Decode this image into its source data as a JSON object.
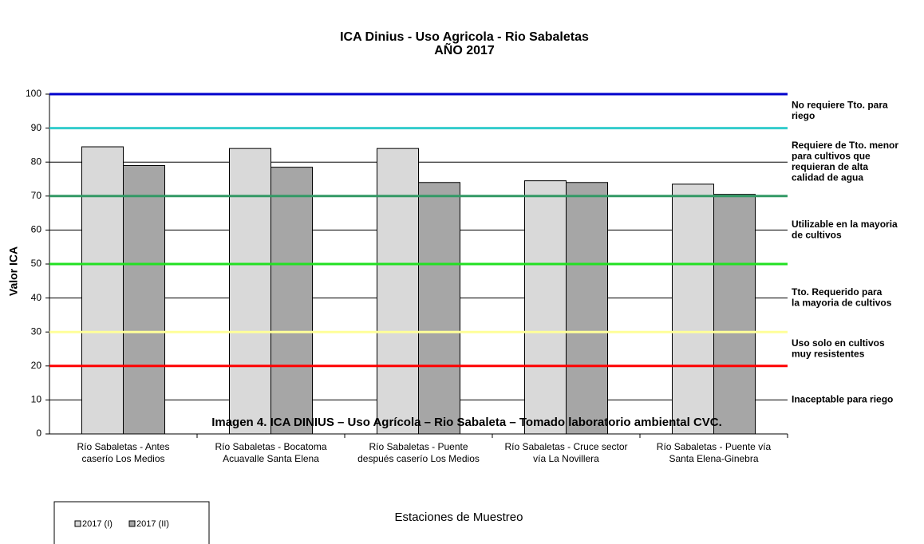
{
  "chart_data": {
    "type": "bar",
    "title": "ICA  Dinius - Uso Agricola - Rio Sabaletas",
    "subtitle": "AÑO 2017",
    "y_label": "Valor  ICA",
    "x_label": "Estaciones de Muestreo",
    "caption": "Imagen 4. ICA DINIUS – Uso Agrícola – Rio Sabaleta – Tomado laboratorio ambiental CVC.",
    "categories": [
      [
        "Río Sabaletas - Antes",
        "caserío  Los Medios"
      ],
      [
        "Río Sabaletas - Bocatoma",
        "Acuavalle Santa Elena"
      ],
      [
        "Río Sabaletas - Puente",
        "después caserío Los Medios"
      ],
      [
        "Río Sabaletas - Cruce sector",
        "vía La Novillera"
      ],
      [
        "Río Sabaletas - Puente vía",
        "Santa Elena-Ginebra"
      ]
    ],
    "series": [
      {
        "name": "2017 (I)",
        "color": "#d9d9d9",
        "values": [
          84.5,
          84,
          84,
          74.5,
          73.5
        ]
      },
      {
        "name": "2017 (II)",
        "color": "#a6a6a6",
        "values": [
          79,
          78.5,
          74,
          74,
          70.5
        ]
      }
    ],
    "ylim": [
      0,
      100
    ],
    "yticks": [
      0,
      10,
      20,
      30,
      40,
      50,
      60,
      70,
      80,
      90,
      100
    ],
    "grid": true,
    "threshold_lines": [
      {
        "value": 100,
        "color": "#0000cc",
        "label": [
          "No requiere Tto. para",
          "riego"
        ]
      },
      {
        "value": 90,
        "color": "#33cccc",
        "label": [
          "Requiere de Tto. menor",
          "para cultivos que",
          "requieran de alta",
          "calidad de agua"
        ]
      },
      {
        "value": 70,
        "color": "#339966",
        "label": [
          "Utilizable en la mayoria",
          "de cultivos"
        ]
      },
      {
        "value": 50,
        "color": "#22e022",
        "label": [
          "Tto. Requerido para",
          "la mayoria de cultivos"
        ]
      },
      {
        "value": 30,
        "color": "#ffff99",
        "label": [
          "Uso solo en cultivos",
          "muy resistentes"
        ]
      },
      {
        "value": 20,
        "color": "#ff0000",
        "label": [
          "Inaceptable para riego"
        ]
      }
    ]
  }
}
